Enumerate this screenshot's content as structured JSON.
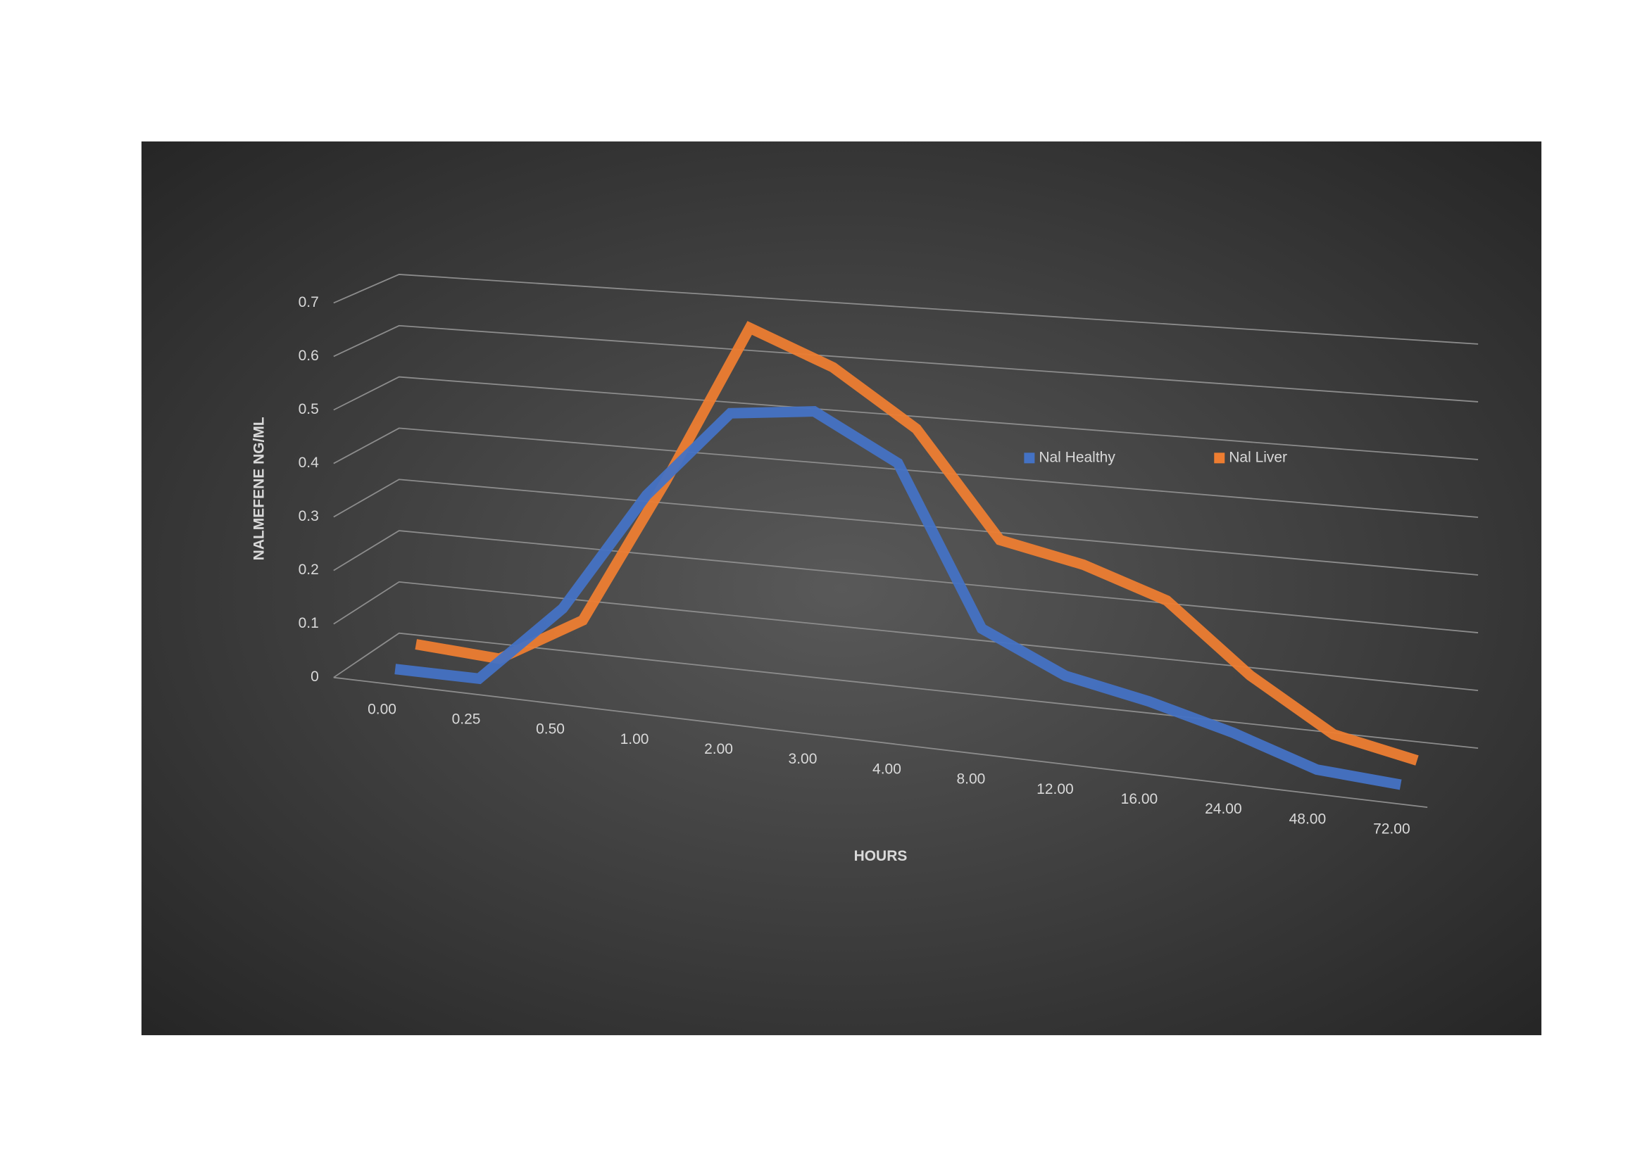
{
  "chart_data": {
    "type": "line",
    "x_label": "HOURS",
    "y_label": "NALMEFENE NG/ML",
    "categories": [
      "0.00",
      "0.25",
      "0.50",
      "1.00",
      "2.00",
      "3.00",
      "4.00",
      "8.00",
      "12.00",
      "16.00",
      "24.00",
      "48.00",
      "72.00"
    ],
    "series": [
      {
        "name": "Nal Healthy",
        "color": "#4472c4",
        "values": [
          0,
          0,
          0.15,
          0.38,
          0.55,
          0.57,
          0.49,
          0.2,
          0.13,
          0.1,
          0.06,
          0.01,
          0
        ]
      },
      {
        "name": "Nal Liver",
        "color": "#ed7d31",
        "values": [
          0.02,
          0.01,
          0.1,
          0.38,
          0.68,
          0.62,
          0.52,
          0.33,
          0.3,
          0.25,
          0.13,
          0.04,
          0.01
        ]
      }
    ],
    "ylim": [
      0,
      0.7
    ],
    "yticks": [
      0,
      0.1,
      0.2,
      0.3,
      0.4,
      0.5,
      0.6,
      0.7
    ],
    "grid": true
  }
}
